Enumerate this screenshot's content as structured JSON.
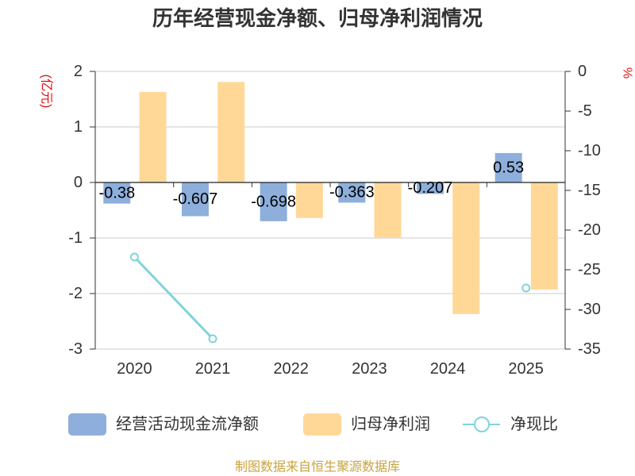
{
  "footer": "制图数据来自恒生聚源数据库",
  "chart_data": {
    "type": "bar",
    "title": "历年经营现金净额、归母净利润情况",
    "categories": [
      "2020",
      "2021",
      "2022",
      "2023",
      "2024",
      "2025"
    ],
    "left_axis": {
      "label": "(亿元)",
      "ylim": [
        -3,
        2
      ],
      "ticks": [
        2,
        1,
        0,
        -1,
        -2,
        -3
      ]
    },
    "right_axis": {
      "label": "%",
      "ylim": [
        -35,
        0
      ],
      "ticks": [
        0,
        -5,
        -10,
        -15,
        -20,
        -25,
        -30,
        -35
      ]
    },
    "series": [
      {
        "name": "经营活动现金流净额",
        "type": "bar",
        "y_axis_index": 0,
        "color": "#8eafdc",
        "show_labels": true,
        "values": [
          -0.38,
          -0.607,
          -0.698,
          -0.363,
          -0.207,
          0.53
        ]
      },
      {
        "name": "归母净利润",
        "type": "bar",
        "y_axis_index": 0,
        "color": "#ffd898",
        "show_labels": false,
        "values": [
          1.63,
          1.81,
          -0.64,
          -1.0,
          -2.37,
          -1.93
        ]
      },
      {
        "name": "净现比",
        "type": "line",
        "y_axis_index": 1,
        "color": "#80d3da",
        "show_labels": false,
        "values": [
          -23.4,
          -33.7,
          null,
          null,
          null,
          -27.3
        ]
      }
    ]
  }
}
